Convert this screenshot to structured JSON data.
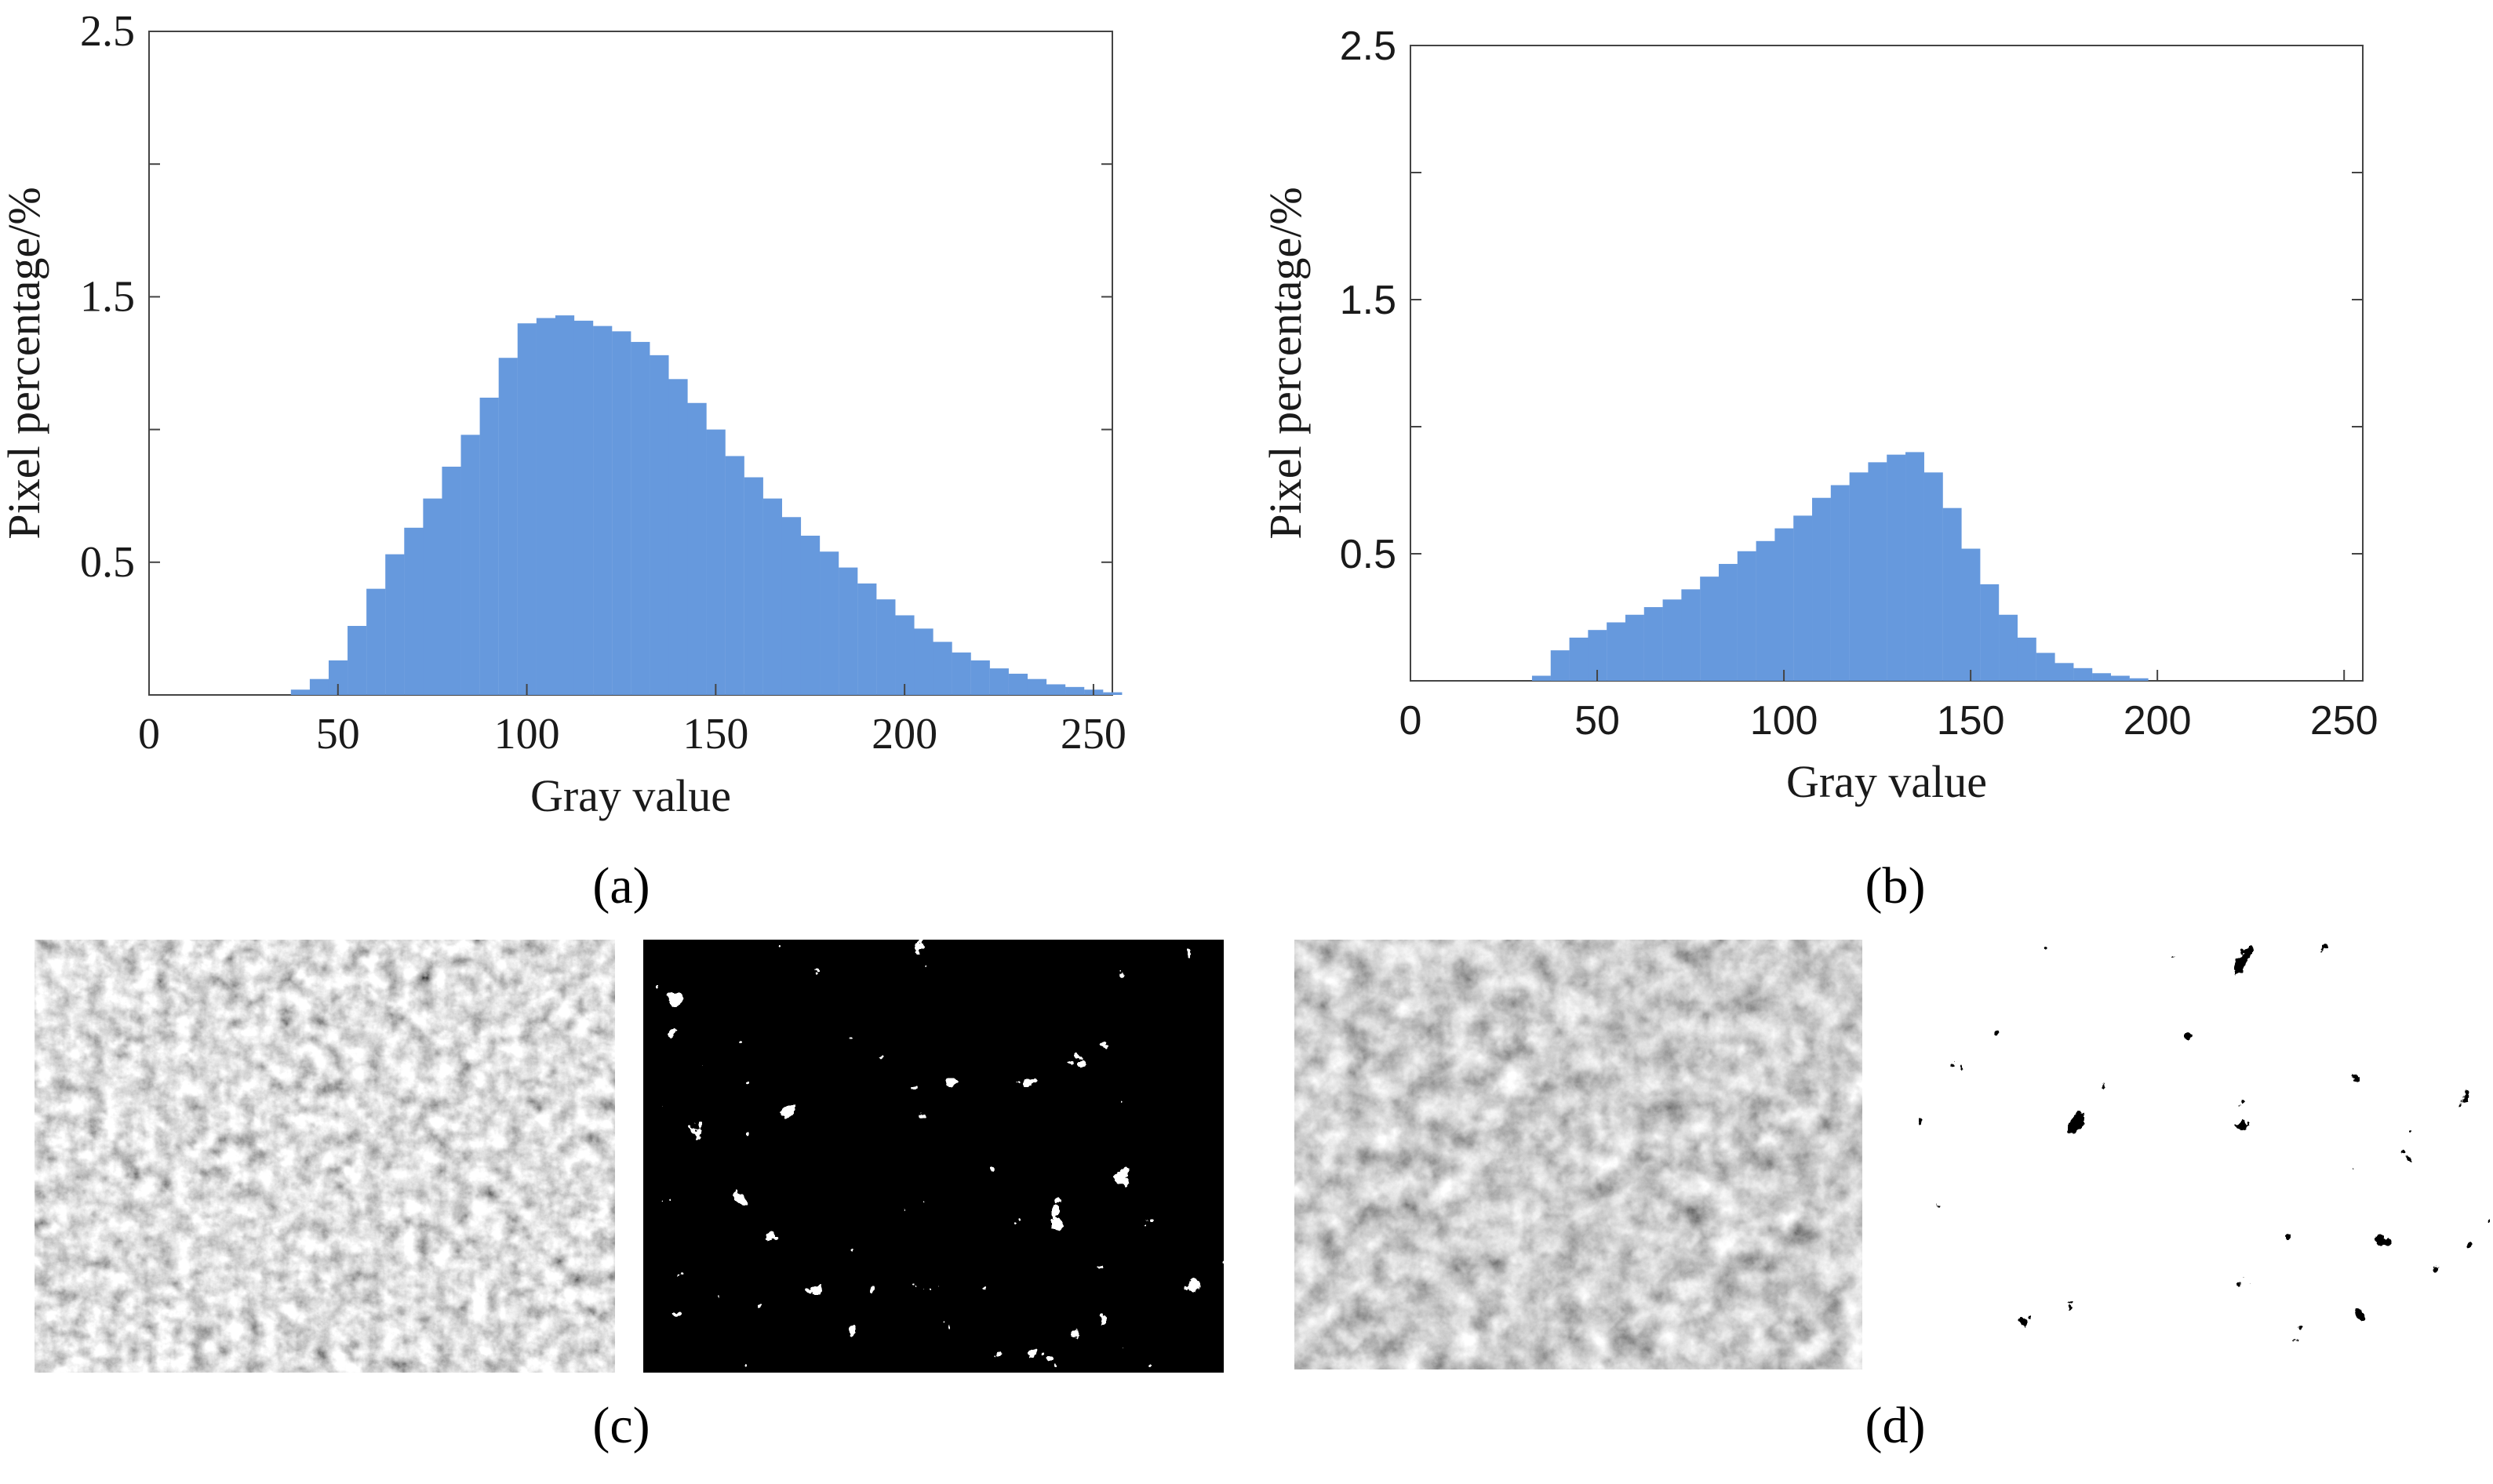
{
  "chart_data": [
    {
      "type": "bar",
      "panel": "a",
      "xlabel": "Gray value",
      "ylabel": "Pixel percentage/%",
      "xlim": [
        0,
        255
      ],
      "ylim": [
        0,
        2.5
      ],
      "xticks": [
        "0",
        "50",
        "100",
        "150",
        "200",
        "250"
      ],
      "yticks": [
        "0.5",
        "1.5",
        "2.5"
      ],
      "bar_color": "#6699dd",
      "x": [
        0,
        5,
        10,
        15,
        20,
        25,
        30,
        35,
        40,
        45,
        50,
        55,
        60,
        65,
        70,
        75,
        80,
        85,
        90,
        95,
        100,
        105,
        110,
        115,
        120,
        125,
        130,
        135,
        140,
        145,
        150,
        155,
        160,
        165,
        170,
        175,
        180,
        185,
        190,
        195,
        200,
        205,
        210,
        215,
        220,
        225,
        230,
        235,
        240,
        245,
        250,
        255
      ],
      "values": [
        0,
        0,
        0,
        0,
        0,
        0,
        0,
        0,
        0.02,
        0.06,
        0.13,
        0.26,
        0.4,
        0.53,
        0.63,
        0.74,
        0.86,
        0.98,
        1.12,
        1.27,
        1.4,
        1.42,
        1.43,
        1.41,
        1.39,
        1.37,
        1.33,
        1.28,
        1.19,
        1.1,
        1.0,
        0.9,
        0.82,
        0.74,
        0.67,
        0.6,
        0.54,
        0.48,
        0.42,
        0.36,
        0.3,
        0.25,
        0.2,
        0.16,
        0.13,
        0.1,
        0.08,
        0.06,
        0.04,
        0.03,
        0.02,
        0.01
      ]
    },
    {
      "type": "bar",
      "panel": "b",
      "xlabel": "Gray value",
      "ylabel": "Pixel percentage/%",
      "xlim": [
        0,
        255
      ],
      "ylim": [
        0,
        2.5
      ],
      "xticks": [
        "0",
        "50",
        "100",
        "150",
        "200",
        "250"
      ],
      "yticks": [
        "0.5",
        "1.5",
        "2.5"
      ],
      "bar_color": "#6699dd",
      "x": [
        0,
        5,
        10,
        15,
        20,
        25,
        30,
        35,
        40,
        45,
        50,
        55,
        60,
        65,
        70,
        75,
        80,
        85,
        90,
        95,
        100,
        105,
        110,
        115,
        120,
        125,
        130,
        135,
        140,
        145,
        150,
        155,
        160,
        165,
        170,
        175,
        180,
        185,
        190,
        195,
        200,
        205,
        210,
        215,
        220,
        225,
        230,
        235,
        240,
        245,
        250,
        255
      ],
      "values": [
        0,
        0,
        0,
        0,
        0,
        0,
        0,
        0.02,
        0.12,
        0.17,
        0.2,
        0.23,
        0.26,
        0.29,
        0.32,
        0.36,
        0.41,
        0.46,
        0.51,
        0.55,
        0.6,
        0.65,
        0.72,
        0.77,
        0.82,
        0.86,
        0.89,
        0.9,
        0.82,
        0.68,
        0.52,
        0.38,
        0.26,
        0.17,
        0.11,
        0.07,
        0.05,
        0.03,
        0.02,
        0.01,
        0.0,
        0,
        0,
        0,
        0,
        0,
        0,
        0,
        0,
        0,
        0,
        0
      ]
    }
  ],
  "captions": {
    "a": "(a)",
    "b": "(b)",
    "c": "(c)",
    "d": "(d)"
  },
  "colors": {
    "bar": "#6699dd",
    "axis": "#1a1a1a",
    "grid_frame": "#444444"
  }
}
